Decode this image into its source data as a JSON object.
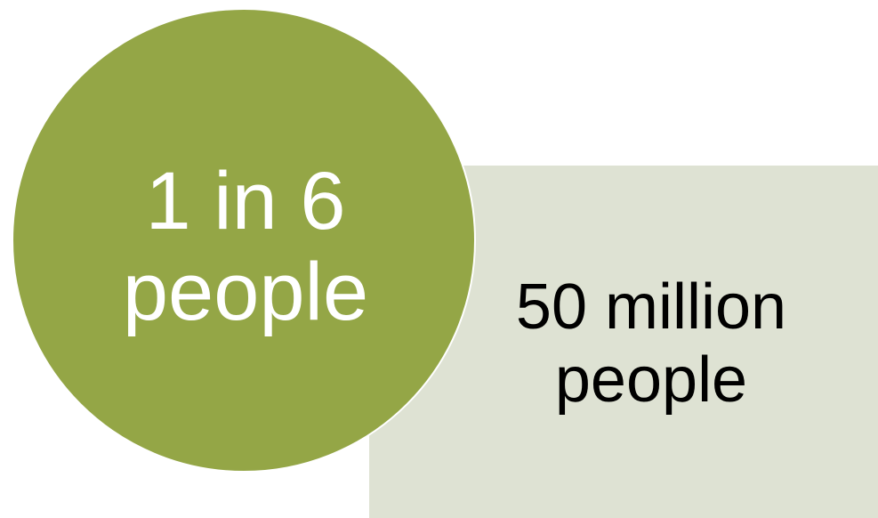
{
  "colors": {
    "circle_fill": "#94a646",
    "box_fill": "#dee2d3",
    "circle_text": "#ffffff",
    "box_text": "#000000"
  },
  "circle": {
    "line1": "1 in 6",
    "line2": "people"
  },
  "box": {
    "line1": "50 million",
    "line2": "people"
  }
}
